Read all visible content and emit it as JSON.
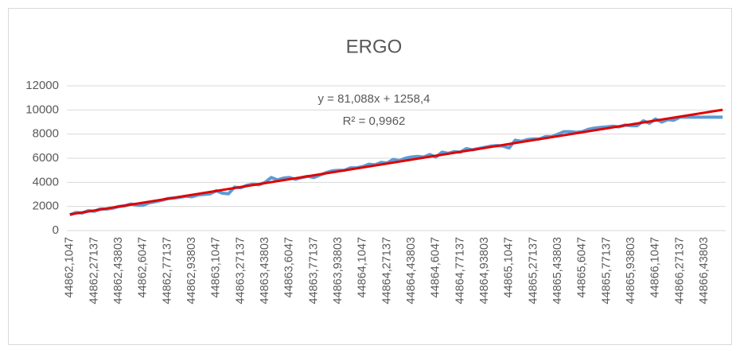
{
  "chart_data": {
    "type": "line",
    "title": "ERGO",
    "categories": [
      "44862,1047",
      null,
      null,
      null,
      "44862,27137",
      null,
      null,
      null,
      "44862,43803",
      null,
      null,
      null,
      "44862,6047",
      null,
      null,
      null,
      "44862,77137",
      null,
      null,
      null,
      "44862,93803",
      null,
      null,
      null,
      "44863,1047",
      null,
      null,
      null,
      "44863,27137",
      null,
      null,
      null,
      "44863,43803",
      null,
      null,
      null,
      "44863,6047",
      null,
      null,
      null,
      "44863,77137",
      null,
      null,
      null,
      "44863,93803",
      null,
      null,
      null,
      "44864,1047",
      null,
      null,
      null,
      "44864,27137",
      null,
      null,
      null,
      "44864,43803",
      null,
      null,
      null,
      "44864,6047",
      null,
      null,
      null,
      "44864,77137",
      null,
      null,
      null,
      "44864,93803",
      null,
      null,
      null,
      "44865,1047",
      null,
      null,
      null,
      "44865,27137",
      null,
      null,
      null,
      "44865,43803",
      null,
      null,
      null,
      "44865,6047",
      null,
      null,
      null,
      "44865,77137",
      null,
      null,
      null,
      "44865,93803",
      null,
      null,
      null,
      "44866,1047",
      null,
      null,
      null,
      "44866,27137",
      null,
      null,
      null,
      "44866,43803",
      null,
      null,
      null
    ],
    "series": [
      {
        "color": "#5b9bd5",
        "values": [
          1300,
          1500,
          1450,
          1650,
          1600,
          1800,
          1780,
          1850,
          2000,
          2050,
          2200,
          2100,
          2100,
          2300,
          2400,
          2500,
          2650,
          2700,
          2750,
          2850,
          2800,
          2950,
          3000,
          3050,
          3300,
          3100,
          3050,
          3600,
          3550,
          3750,
          3850,
          3800,
          4000,
          4400,
          4200,
          4350,
          4400,
          4250,
          4400,
          4500,
          4400,
          4600,
          4800,
          4950,
          5000,
          5000,
          5200,
          5200,
          5300,
          5500,
          5450,
          5650,
          5600,
          5900,
          5800,
          6000,
          6100,
          6150,
          6100,
          6300,
          6100,
          6500,
          6400,
          6550,
          6500,
          6800,
          6700,
          6800,
          6900,
          7000,
          7050,
          7000,
          6850,
          7500,
          7400,
          7550,
          7600,
          7600,
          7800,
          7800,
          8000,
          8200,
          8200,
          8150,
          8200,
          8400,
          8500,
          8550,
          8600,
          8650,
          8600,
          8750,
          8700,
          8700,
          9100,
          8900,
          9250,
          9000,
          9200,
          9150,
          9400,
          9400,
          9400,
          9400,
          9400,
          9400,
          9400,
          9400
        ]
      }
    ],
    "trendline": {
      "color": "#e00000",
      "slope": 81.088,
      "intercept": 1258.4,
      "equation": "y = 81,088x + 1258,4",
      "r_squared": "R² = 0,9962"
    },
    "ylim": [
      0,
      12000
    ],
    "yticks": [
      0,
      2000,
      4000,
      6000,
      8000,
      10000,
      12000
    ],
    "grid": true
  }
}
